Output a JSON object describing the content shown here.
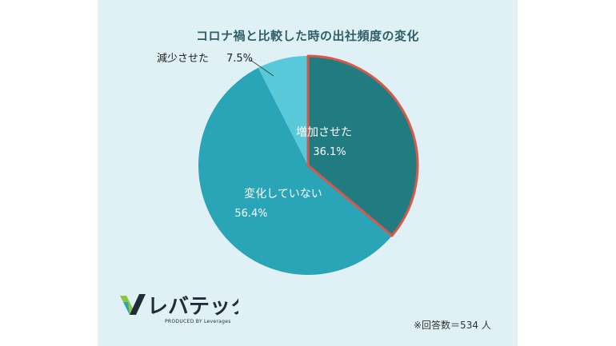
{
  "chart_data": {
    "type": "pie",
    "title": "コロナ禍と比較した時の出社頻度の変化",
    "slices": [
      {
        "label": "増加させた",
        "value": 36.1,
        "pct_text": "36.1%",
        "color": "#217c82",
        "highlight": "#d9584c"
      },
      {
        "label": "変化していない",
        "value": 56.4,
        "pct_text": "56.4%",
        "color": "#29a5b7"
      },
      {
        "label": "減少させた",
        "value": 7.5,
        "pct_text": "7.5%",
        "color": "#58c9d8"
      }
    ]
  },
  "footnote": "※回答数＝534 人",
  "logo": {
    "name": "レバテック",
    "tagline": "PRODUCED BY Leverages"
  }
}
